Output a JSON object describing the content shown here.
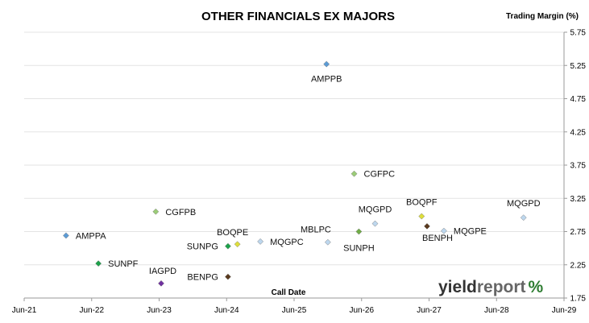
{
  "chart_data": {
    "type": "scatter",
    "title": "OTHER FINANCIALS EX MAJORS",
    "xlabel": "Call Date",
    "ylabel": "Trading Margin (%)",
    "x_ticks": [
      "Jun-21",
      "Jun-22",
      "Jun-23",
      "Jun-24",
      "Jun-25",
      "Jun-26",
      "Jun-27",
      "Jun-28",
      "Jun-29"
    ],
    "xlim": [
      2021.5,
      2029.5
    ],
    "ylim": [
      1.75,
      5.75
    ],
    "y_ticks": [
      "1.75",
      "2.25",
      "2.75",
      "3.25",
      "3.75",
      "4.25",
      "4.75",
      "5.25",
      "5.75"
    ],
    "y_step": 0.5,
    "grid": true,
    "points": [
      {
        "label": "AMPPA",
        "x": 2022.12,
        "y": 2.69,
        "color": "#5b9bd5"
      },
      {
        "label": "SUNPF",
        "x": 2022.6,
        "y": 2.27,
        "color": "#1ca24a"
      },
      {
        "label": "CGFPB",
        "x": 2023.45,
        "y": 3.05,
        "color": "#9bcc77"
      },
      {
        "label": "IAGPD",
        "x": 2023.53,
        "y": 1.97,
        "color": "#7030a0"
      },
      {
        "label": "SUNPG",
        "x": 2024.52,
        "y": 2.53,
        "color": "#1ca24a"
      },
      {
        "label": "BENPG",
        "x": 2024.52,
        "y": 2.07,
        "color": "#5a3a1e"
      },
      {
        "label": "BOQPE",
        "x": 2024.66,
        "y": 2.56,
        "color": "#dede3a"
      },
      {
        "label": "MQGPC",
        "x": 2025.0,
        "y": 2.6,
        "color": "#bdd7ee"
      },
      {
        "label": "AMPPB",
        "x": 2025.98,
        "y": 5.27,
        "color": "#5b9bd5"
      },
      {
        "label": "MBLPC",
        "x": 2026.0,
        "y": 2.59,
        "color": "#bdd7ee"
      },
      {
        "label": "CGFPC",
        "x": 2026.39,
        "y": 3.62,
        "color": "#9bcc77"
      },
      {
        "label": "SUNPH",
        "x": 2026.46,
        "y": 2.75,
        "color": "#70ad47"
      },
      {
        "label": "MQGPD",
        "x": 2026.7,
        "y": 2.87,
        "color": "#bdd7ee"
      },
      {
        "label": "BOQPF",
        "x": 2027.39,
        "y": 2.98,
        "color": "#dede3a"
      },
      {
        "label": "BENPH",
        "x": 2027.47,
        "y": 2.83,
        "color": "#5a3a1e"
      },
      {
        "label": "MQGPE",
        "x": 2027.72,
        "y": 2.76,
        "color": "#bdd7ee"
      },
      {
        "label": "MQGPD",
        "x": 2028.9,
        "y": 2.96,
        "color": "#bdd7ee"
      }
    ]
  },
  "brand": {
    "part1": "yield",
    "part2": "report",
    "part3": "%"
  }
}
